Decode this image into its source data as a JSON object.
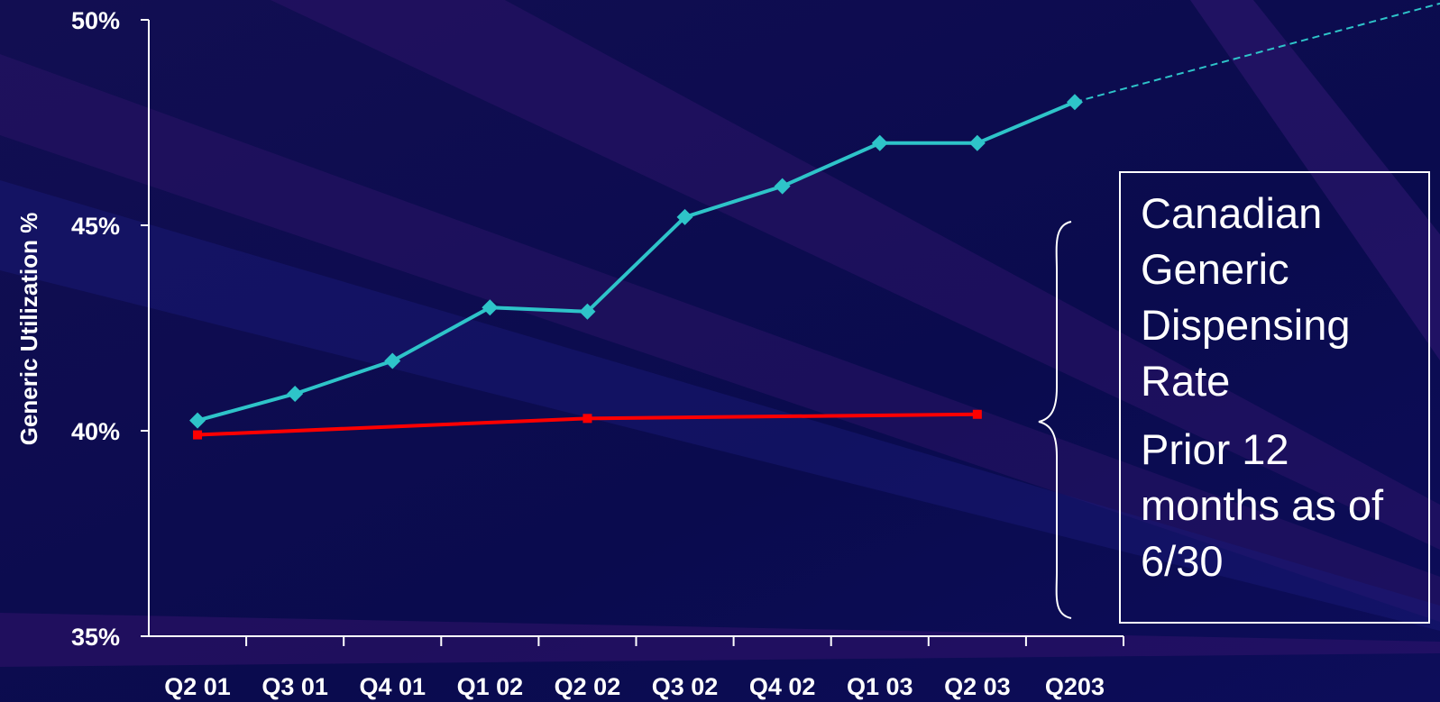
{
  "chart_data": {
    "type": "line",
    "categories": [
      "Q2 01",
      "Q3 01",
      "Q4 01",
      "Q1 02",
      "Q2 02",
      "Q3 02",
      "Q4 02",
      "Q1 03",
      "Q2 03",
      "Q203"
    ],
    "series": [
      {
        "color": "#2ec4c9",
        "values": [
          40.25,
          40.9,
          41.7,
          43.0,
          42.9,
          45.2,
          45.95,
          47.0,
          47.0,
          48.0
        ],
        "markers": "diamond",
        "projection": "dashed trend continuing upward after last point"
      },
      {
        "color": "#ff0000",
        "points": [
          {
            "x": "Q2 01",
            "y": 39.9
          },
          {
            "x": "Q2 02",
            "y": 40.3
          },
          {
            "x": "Q2 03",
            "y": 40.4
          }
        ],
        "markers": "square"
      }
    ],
    "ylabel": "Generic Utilization %",
    "xlabel": "",
    "ylim": [
      35,
      50
    ],
    "yticks": [
      "35%",
      "40%",
      "45%",
      "50%"
    ],
    "legend": "none"
  },
  "callout": {
    "line1": "Canadian Generic Dispensing Rate",
    "line2": "Prior 12 months as of 6/30"
  }
}
